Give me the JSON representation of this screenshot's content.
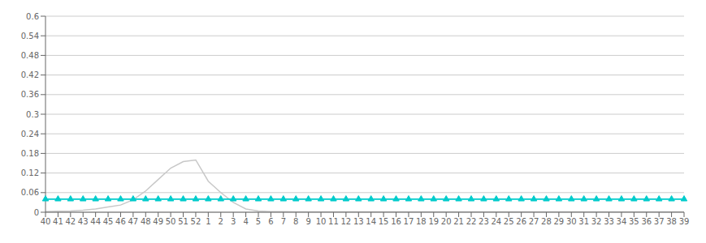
{
  "chart_data": {
    "type": "line",
    "categories": [
      "40",
      "41",
      "42",
      "43",
      "44",
      "45",
      "46",
      "47",
      "48",
      "49",
      "50",
      "51",
      "52",
      "1",
      "2",
      "3",
      "4",
      "5",
      "6",
      "7",
      "8",
      "9",
      "10",
      "11",
      "12",
      "13",
      "14",
      "15",
      "16",
      "17",
      "18",
      "19",
      "20",
      "21",
      "22",
      "23",
      "24",
      "25",
      "26",
      "27",
      "28",
      "29",
      "30",
      "31",
      "32",
      "33",
      "34",
      "35",
      "36",
      "37",
      "38",
      "39"
    ],
    "series": [
      {
        "color": "#c8c8c8",
        "values": [
          0.002,
          0.003,
          0.004,
          0.006,
          0.01,
          0.016,
          0.022,
          0.038,
          0.065,
          0.1,
          0.135,
          0.155,
          0.16,
          0.095,
          0.06,
          0.03,
          0.01,
          0.004,
          0.002,
          0.002,
          0.001,
          0.001,
          0.001,
          0.001,
          0.001,
          0.001,
          0.001,
          0.001,
          0.001,
          0.001,
          0.001,
          0.001,
          0.001,
          0.001,
          0.001,
          0.001,
          0.001,
          0.001,
          0.001,
          0.001,
          0.001,
          0.001,
          0.001,
          0.001,
          0.001,
          0.001,
          0.001,
          0.001,
          0.001,
          0.001,
          0.001,
          0.001
        ]
      },
      {
        "color": "#00cccc",
        "marker": "triangle",
        "values": [
          0.04,
          0.04,
          0.04,
          0.04,
          0.04,
          0.04,
          0.04,
          0.04,
          0.04,
          0.04,
          0.04,
          0.04,
          0.04,
          0.04,
          0.04,
          0.04,
          0.04,
          0.04,
          0.04,
          0.04,
          0.04,
          0.04,
          0.04,
          0.04,
          0.04,
          0.04,
          0.04,
          0.04,
          0.04,
          0.04,
          0.04,
          0.04,
          0.04,
          0.04,
          0.04,
          0.04,
          0.04,
          0.04,
          0.04,
          0.04,
          0.04,
          0.04,
          0.04,
          0.04,
          0.04,
          0.04,
          0.04,
          0.04,
          0.04,
          0.04,
          0.04,
          0.04
        ]
      }
    ],
    "ylim": [
      0,
      0.6
    ],
    "yticks": [
      0,
      0.06,
      0.12,
      0.18,
      0.24,
      0.3,
      0.36,
      0.42,
      0.48,
      0.54,
      0.6
    ],
    "grid": true
  }
}
